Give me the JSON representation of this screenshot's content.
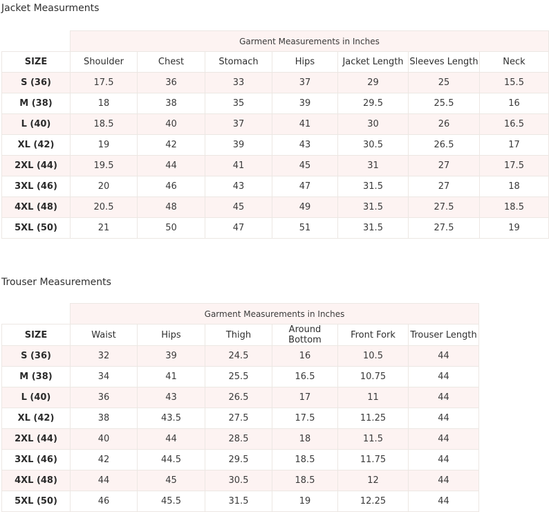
{
  "jacket": {
    "title": "Jacket Measurments",
    "group_header": "Garment Measurements in Inches",
    "columns": [
      "SIZE",
      "Shoulder",
      "Chest",
      "Stomach",
      "Hips",
      "Jacket Length",
      "Sleeves Length",
      "Neck"
    ],
    "rows": [
      [
        "S (36)",
        "17.5",
        "36",
        "33",
        "37",
        "29",
        "25",
        "15.5"
      ],
      [
        "M (38)",
        "18",
        "38",
        "35",
        "39",
        "29.5",
        "25.5",
        "16"
      ],
      [
        "L (40)",
        "18.5",
        "40",
        "37",
        "41",
        "30",
        "26",
        "16.5"
      ],
      [
        "XL (42)",
        "19",
        "42",
        "39",
        "43",
        "30.5",
        "26.5",
        "17"
      ],
      [
        "2XL (44)",
        "19.5",
        "44",
        "41",
        "45",
        "31",
        "27",
        "17.5"
      ],
      [
        "3XL (46)",
        "20",
        "46",
        "43",
        "47",
        "31.5",
        "27",
        "18"
      ],
      [
        "4XL (48)",
        "20.5",
        "48",
        "45",
        "49",
        "31.5",
        "27.5",
        "18.5"
      ],
      [
        "5XL (50)",
        "21",
        "50",
        "47",
        "51",
        "31.5",
        "27.5",
        "19"
      ]
    ]
  },
  "trouser": {
    "title": "Trouser Measurements",
    "group_header": "Garment Measurements in Inches",
    "columns": [
      "SIZE",
      "Waist",
      "Hips",
      "Thigh",
      "Around Bottom",
      "Front Fork",
      "Trouser Length"
    ],
    "rows": [
      [
        "S (36)",
        "32",
        "39",
        "24.5",
        "16",
        "10.5",
        "44"
      ],
      [
        "M (38)",
        "34",
        "41",
        "25.5",
        "16.5",
        "10.75",
        "44"
      ],
      [
        "L (40)",
        "36",
        "43",
        "26.5",
        "17",
        "11",
        "44"
      ],
      [
        "XL (42)",
        "38",
        "43.5",
        "27.5",
        "17.5",
        "11.25",
        "44"
      ],
      [
        "2XL (44)",
        "40",
        "44",
        "28.5",
        "18",
        "11.5",
        "44"
      ],
      [
        "3XL (46)",
        "42",
        "44.5",
        "29.5",
        "18.5",
        "11.75",
        "44"
      ],
      [
        "4XL (48)",
        "44",
        "45",
        "30.5",
        "18.5",
        "12",
        "44"
      ],
      [
        "5XL (50)",
        "46",
        "45.5",
        "31.5",
        "19",
        "12.25",
        "44"
      ]
    ]
  }
}
